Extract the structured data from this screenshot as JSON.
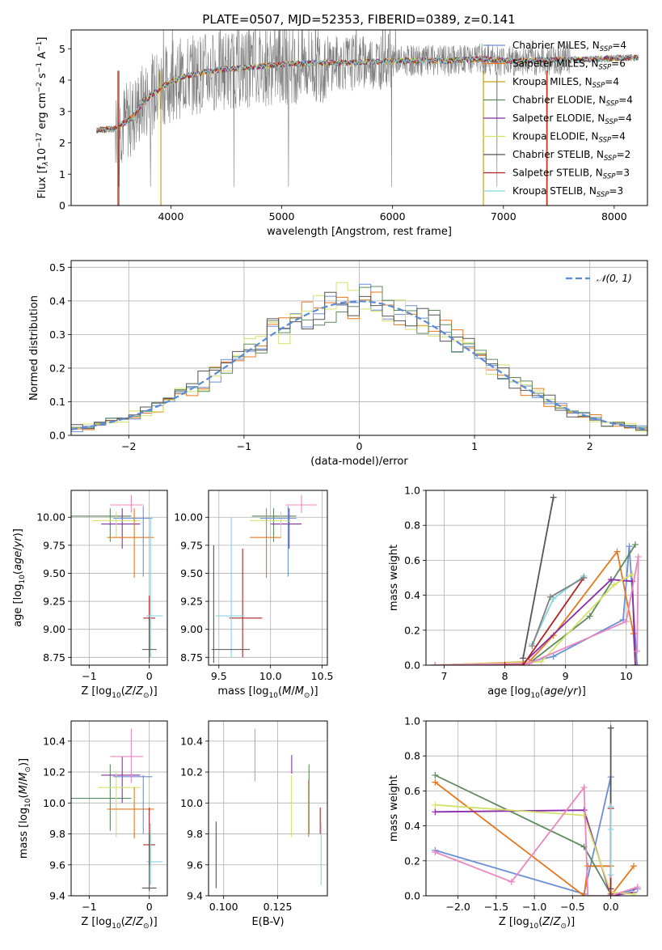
{
  "figure_title": "PLATE=0507, MJD=52353, FIBERID=0389, z=0.141",
  "chart_data": [
    {
      "id": "spectrum",
      "type": "line",
      "xlabel": "wavelength [Angstrom, rest frame]",
      "ylabel_parts": [
        "Flux [f",
        "λ",
        "10",
        "−17",
        " erg cm",
        "−2",
        " s",
        "−1",
        " A",
        "−1",
        "]"
      ],
      "xlim": [
        3100,
        8300
      ],
      "ylim": [
        0,
        5.6
      ],
      "xticks": [
        4000,
        5000,
        6000,
        7000,
        8000
      ],
      "yticks": [
        0,
        1,
        2,
        3,
        4,
        5
      ],
      "grid": false,
      "legend_placement": "upper right",
      "data_color": "#808080",
      "continuum": {
        "x": [
          3330,
          3500,
          3650,
          3750,
          3850,
          3950,
          4100,
          4300,
          4500,
          4700,
          5000,
          5300,
          5600,
          5900,
          6200,
          6500,
          6800,
          7100,
          7400,
          7700,
          8000,
          8200
        ],
        "y": [
          2.4,
          2.45,
          2.8,
          3.3,
          3.6,
          3.85,
          4.1,
          4.25,
          4.35,
          4.4,
          4.5,
          4.55,
          4.55,
          4.6,
          4.62,
          4.62,
          4.68,
          4.6,
          4.65,
          4.65,
          4.7,
          4.72
        ]
      },
      "series": [
        {
          "name_parts": [
            "Chabrier MILES, N",
            "SSP",
            "=4"
          ],
          "color": "#6a8fd6"
        },
        {
          "name_parts": [
            "Salpeter MILES, N",
            "SSP",
            "=6"
          ],
          "color": "#e8781e"
        },
        {
          "name_parts": [
            "Kroupa MILES, N",
            "SSP",
            "=4"
          ],
          "color": "#c9a018"
        },
        {
          "name_parts": [
            "Chabrier ELODIE, N",
            "SSP",
            "=4"
          ],
          "color": "#5e8a5e"
        },
        {
          "name_parts": [
            "Salpeter ELODIE, N",
            "SSP",
            "=4"
          ],
          "color": "#8a2da8"
        },
        {
          "name_parts": [
            "Kroupa ELODIE, N",
            "SSP",
            "=4"
          ],
          "color": "#d4e06a"
        },
        {
          "name_parts": [
            "Chabrier STELIB, N",
            "SSP",
            "=2"
          ],
          "color": "#555555"
        },
        {
          "name_parts": [
            "Salpeter STELIB, N",
            "SSP",
            "=3"
          ],
          "color": "#b22222"
        },
        {
          "name_parts": [
            "Kroupa STELIB, N",
            "SSP",
            "=3"
          ],
          "color": "#8ad4e0"
        }
      ]
    },
    {
      "id": "residuals",
      "type": "line",
      "xlabel": "(data-model)/error",
      "ylabel": "Normed distribution",
      "xlim": [
        -2.5,
        2.5
      ],
      "ylim": [
        0,
        0.52
      ],
      "xticks": [
        -2,
        -1,
        0,
        1,
        2
      ],
      "xtick_labels": [
        "−2",
        "−1",
        "0",
        "1",
        "2"
      ],
      "yticks": [
        0.0,
        0.1,
        0.2,
        0.3,
        0.4,
        0.5
      ],
      "ytick_labels": [
        "0.0",
        "0.1",
        "0.2",
        "0.3",
        "0.4",
        "0.5"
      ],
      "grid": true,
      "legend": "𝒩(0, 1)",
      "legend_placement": "upper right",
      "gauss_color": "#5b8bd6",
      "series_colors": [
        "#6a8fd6",
        "#e8781e",
        "#d4e06a",
        "#5e8a5e",
        "#555555"
      ]
    },
    {
      "id": "age-vs-z",
      "type": "scatter",
      "xlabel": "Z [log10(Z/Z⊙)]",
      "ylabel": "age  [log10(age/yr)]",
      "xlim": [
        -1.3,
        0.3
      ],
      "ylim": [
        8.68,
        10.24
      ],
      "xticks": [
        -1,
        0
      ],
      "xtick_labels": [
        "−1",
        "0"
      ],
      "yticks": [
        8.75,
        9.0,
        9.25,
        9.5,
        9.75,
        10.0
      ],
      "ytick_labels": [
        "8.75",
        "9.00",
        "9.25",
        "9.50",
        "9.75",
        "10.00"
      ],
      "grid": true,
      "points": [
        {
          "x": -0.65,
          "y": 10.01,
          "xlo": -1.3,
          "xhi": -0.3,
          "ylo": 9.78,
          "yhi": 10.08,
          "color": "#5e8a5e"
        },
        {
          "x": -0.45,
          "y": 9.94,
          "xlo": -0.8,
          "xhi": -0.15,
          "ylo": 9.72,
          "yhi": 10.08,
          "color": "#8a2da8"
        },
        {
          "x": -0.55,
          "y": 9.97,
          "xlo": -0.95,
          "xhi": -0.15,
          "ylo": 9.82,
          "yhi": 10.05,
          "color": "#d4e06a"
        },
        {
          "x": -0.25,
          "y": 9.82,
          "xlo": -0.7,
          "xhi": 0.08,
          "ylo": 9.46,
          "yhi": 10.08,
          "color": "#e8781e"
        },
        {
          "x": -0.1,
          "y": 9.99,
          "xlo": -0.6,
          "xhi": 0.05,
          "ylo": 9.47,
          "yhi": 10.1,
          "color": "#6a8fd6"
        },
        {
          "x": -0.3,
          "y": 10.11,
          "xlo": -0.65,
          "xhi": -0.1,
          "ylo": 10.04,
          "yhi": 10.2,
          "color": "#e887c0"
        },
        {
          "x": 0.0,
          "y": 9.1,
          "xlo": -0.1,
          "xhi": 0.1,
          "ylo": 8.75,
          "yhi": 9.3,
          "color": "#b22222"
        },
        {
          "x": 0.02,
          "y": 9.12,
          "xlo": -0.05,
          "xhi": 0.22,
          "ylo": 8.75,
          "yhi": 10.0,
          "color": "#8ad4e0"
        },
        {
          "x": 0.0,
          "y": 8.82,
          "xlo": -0.12,
          "xhi": 0.12,
          "ylo": 8.7,
          "yhi": 9.1,
          "color": "#555555"
        }
      ]
    },
    {
      "id": "age-vs-mass",
      "type": "scatter",
      "xlabel": "mass [log10(M/M⊙)]",
      "ylabel": "",
      "xlim": [
        9.4,
        10.55
      ],
      "ylim": [
        8.68,
        10.24
      ],
      "xticks": [
        9.5,
        10.0,
        10.5
      ],
      "xtick_labels": [
        "9.5",
        "10.0",
        "10.5"
      ],
      "yticks": [
        8.75,
        9.0,
        9.25,
        9.5,
        9.75,
        10.0
      ],
      "ytick_labels": [
        "8.75",
        "9.00",
        "9.25",
        "9.50",
        "9.75",
        "10.00"
      ],
      "grid": true,
      "points": [
        {
          "x": 10.03,
          "y": 10.01,
          "xlo": 9.82,
          "xhi": 10.25,
          "ylo": 9.78,
          "yhi": 10.08,
          "color": "#5e8a5e"
        },
        {
          "x": 10.18,
          "y": 9.94,
          "xlo": 10.0,
          "xhi": 10.3,
          "ylo": 9.72,
          "yhi": 10.08,
          "color": "#8a2da8"
        },
        {
          "x": 10.1,
          "y": 9.97,
          "xlo": 9.8,
          "xhi": 10.2,
          "ylo": 9.82,
          "yhi": 10.05,
          "color": "#d4e06a"
        },
        {
          "x": 9.96,
          "y": 9.82,
          "xlo": 9.8,
          "xhi": 10.1,
          "ylo": 9.46,
          "yhi": 10.08,
          "color": "#e8781e"
        },
        {
          "x": 10.17,
          "y": 9.99,
          "xlo": 9.9,
          "xhi": 10.25,
          "ylo": 9.47,
          "yhi": 10.1,
          "color": "#6a8fd6"
        },
        {
          "x": 10.3,
          "y": 10.11,
          "xlo": 10.15,
          "xhi": 10.45,
          "ylo": 10.04,
          "yhi": 10.2,
          "color": "#e887c0"
        },
        {
          "x": 9.73,
          "y": 9.1,
          "xlo": 9.6,
          "xhi": 9.92,
          "ylo": 8.75,
          "yhi": 9.72,
          "color": "#b22222"
        },
        {
          "x": 9.62,
          "y": 9.12,
          "xlo": 9.47,
          "xhi": 9.75,
          "ylo": 8.75,
          "yhi": 10.0,
          "color": "#8ad4e0"
        },
        {
          "x": 9.45,
          "y": 8.82,
          "xlo": 9.43,
          "xhi": 9.8,
          "ylo": 8.7,
          "yhi": 9.75,
          "color": "#555555"
        }
      ]
    },
    {
      "id": "mw-vs-age",
      "type": "line",
      "xlabel": "age  [log10(age/yr)]",
      "ylabel": "mass weight",
      "xlim": [
        6.7,
        10.35
      ],
      "ylim": [
        0,
        1.0
      ],
      "xticks": [
        7,
        8,
        9,
        10
      ],
      "xtick_labels": [
        "7",
        "8",
        "9",
        "10"
      ],
      "yticks": [
        0.0,
        0.2,
        0.4,
        0.6,
        0.8,
        1.0
      ],
      "ytick_labels": [
        "0.0",
        "0.2",
        "0.4",
        "0.6",
        "0.8",
        "1.0"
      ],
      "grid": true,
      "series": [
        {
          "color": "#6a8fd6",
          "x": [
            6.85,
            8.3,
            8.8,
            9.95,
            10.05,
            10.18
          ],
          "y": [
            0.0,
            0.01,
            0.05,
            0.26,
            0.68,
            0.0
          ]
        },
        {
          "color": "#e8781e",
          "x": [
            6.85,
            8.4,
            8.8,
            9.85,
            10.12,
            10.15
          ],
          "y": [
            0.0,
            0.02,
            0.17,
            0.65,
            0.18,
            0.0
          ]
        },
        {
          "color": "#5e8a5e",
          "x": [
            6.85,
            8.4,
            9.4,
            10.15
          ],
          "y": [
            0.0,
            0.01,
            0.28,
            0.69
          ]
        },
        {
          "color": "#8a2da8",
          "x": [
            6.85,
            8.3,
            9.75,
            10.1,
            10.15
          ],
          "y": [
            0.0,
            0.01,
            0.49,
            0.48,
            0.0
          ]
        },
        {
          "color": "#d4e06a",
          "x": [
            6.85,
            8.6,
            9.8,
            10.1
          ],
          "y": [
            0.0,
            0.02,
            0.46,
            0.52
          ]
        },
        {
          "color": "#e887c0",
          "x": [
            6.85,
            8.4,
            10.0,
            10.2,
            10.18
          ],
          "y": [
            0.0,
            0.01,
            0.25,
            0.62,
            0.08
          ]
        },
        {
          "color": "#555555",
          "x": [
            8.3,
            8.8
          ],
          "y": [
            0.04,
            0.96
          ]
        },
        {
          "color": "#b22222",
          "x": [
            8.0,
            8.3,
            9.3
          ],
          "y": [
            0.0,
            0.0,
            0.5
          ]
        },
        {
          "color": "#8ad4e0",
          "x": [
            8.45,
            8.8,
            9.3
          ],
          "y": [
            0.12,
            0.38,
            0.51
          ]
        },
        {
          "color": "#808080",
          "x": [
            8.45,
            8.75,
            9.3
          ],
          "y": [
            0.11,
            0.39,
            0.5
          ]
        }
      ]
    },
    {
      "id": "mass-vs-z",
      "type": "scatter",
      "xlabel": "Z [log10(Z/Z⊙)]",
      "ylabel": "mass [log10(M/M⊙)]",
      "xlim": [
        -1.3,
        0.3
      ],
      "ylim": [
        9.4,
        10.53
      ],
      "xticks": [
        -1,
        0
      ],
      "xtick_labels": [
        "−1",
        "0"
      ],
      "yticks": [
        9.4,
        9.6,
        9.8,
        10.0,
        10.2,
        10.4
      ],
      "ytick_labels": [
        "9.4",
        "9.6",
        "9.8",
        "10.0",
        "10.2",
        "10.4"
      ],
      "grid": true,
      "points": [
        {
          "x": -0.65,
          "y": 10.03,
          "xlo": -1.3,
          "xhi": -0.3,
          "ylo": 9.82,
          "yhi": 10.25,
          "color": "#5e8a5e"
        },
        {
          "x": -0.45,
          "y": 10.18,
          "xlo": -0.8,
          "xhi": -0.15,
          "ylo": 10.0,
          "yhi": 10.3,
          "color": "#8a2da8"
        },
        {
          "x": -0.55,
          "y": 10.1,
          "xlo": -0.85,
          "xhi": -0.15,
          "ylo": 9.78,
          "yhi": 10.2,
          "color": "#d4e06a"
        },
        {
          "x": -0.25,
          "y": 9.96,
          "xlo": -0.7,
          "xhi": 0.08,
          "ylo": 9.77,
          "yhi": 10.1,
          "color": "#e8781e"
        },
        {
          "x": -0.1,
          "y": 10.17,
          "xlo": -0.6,
          "xhi": 0.05,
          "ylo": 9.8,
          "yhi": 10.18,
          "color": "#6a8fd6"
        },
        {
          "x": -0.3,
          "y": 10.3,
          "xlo": -0.65,
          "xhi": -0.1,
          "ylo": 10.13,
          "yhi": 10.48,
          "color": "#e887c0"
        },
        {
          "x": 0.0,
          "y": 9.73,
          "xlo": -0.1,
          "xhi": 0.1,
          "ylo": 9.6,
          "yhi": 9.97,
          "color": "#b22222"
        },
        {
          "x": 0.02,
          "y": 9.62,
          "xlo": -0.05,
          "xhi": 0.22,
          "ylo": 9.47,
          "yhi": 9.87,
          "color": "#8ad4e0"
        },
        {
          "x": 0.0,
          "y": 9.45,
          "xlo": -0.12,
          "xhi": 0.12,
          "ylo": 9.43,
          "yhi": 9.8,
          "color": "#555555"
        }
      ]
    },
    {
      "id": "mass-vs-ebv",
      "type": "scatter",
      "xlabel": "E(B-V)",
      "ylabel": "",
      "xlim": [
        0.093,
        0.148
      ],
      "ylim": [
        9.4,
        10.53
      ],
      "xticks": [
        0.1,
        0.125
      ],
      "xtick_labels": [
        "0.100",
        "0.125"
      ],
      "yticks": [
        9.4,
        9.6,
        9.8,
        10.0,
        10.2,
        10.4
      ],
      "ytick_labels": [
        "9.4",
        "9.6",
        "9.8",
        "10.0",
        "10.2",
        "10.4"
      ],
      "grid": true,
      "points": [
        {
          "x": 0.0965,
          "ylo": 9.45,
          "yhi": 9.88,
          "color": "#555555"
        },
        {
          "x": 0.1145,
          "ylo": 10.14,
          "yhi": 10.48,
          "color": "#e887c0"
        },
        {
          "x": 0.1315,
          "ylo": 10.19,
          "yhi": 10.31,
          "color": "#8a2da8"
        },
        {
          "x": 0.1313,
          "ylo": 9.78,
          "yhi": 10.18,
          "color": "#d4e06a"
        },
        {
          "x": 0.1395,
          "ylo": 9.8,
          "yhi": 10.25,
          "color": "#5e8a5e"
        },
        {
          "x": 0.1393,
          "ylo": 9.78,
          "yhi": 10.15,
          "color": "#e8781e"
        },
        {
          "x": 0.1447,
          "ylo": 9.8,
          "yhi": 9.97,
          "color": "#b22222"
        },
        {
          "x": 0.1451,
          "ylo": 9.47,
          "yhi": 9.87,
          "color": "#8ad4e0"
        }
      ]
    },
    {
      "id": "mw-vs-z",
      "type": "line",
      "xlabel": "Z [log10(Z/Z⊙)]",
      "ylabel": "mass weight",
      "xlim": [
        -2.42,
        0.48
      ],
      "ylim": [
        0,
        1.0
      ],
      "xticks": [
        -2.0,
        -1.5,
        -1.0,
        -0.5,
        0.0
      ],
      "xtick_labels": [
        "−2.0",
        "−1.5",
        "−1.0",
        "−0.5",
        "0.0"
      ],
      "yticks": [
        0.0,
        0.2,
        0.4,
        0.6,
        0.8,
        1.0
      ],
      "ytick_labels": [
        "0.0",
        "0.2",
        "0.4",
        "0.6",
        "0.8",
        "1.0"
      ],
      "grid": true,
      "series": [
        {
          "color": "#6a8fd6",
          "x": [
            -2.3,
            -0.35,
            0.0,
            0.0,
            0.35
          ],
          "y": [
            0.26,
            0.01,
            0.68,
            0.0,
            0.04
          ]
        },
        {
          "color": "#e8781e",
          "x": [
            -2.3,
            -0.35,
            -0.3,
            0.0,
            0.0,
            0.3
          ],
          "y": [
            0.65,
            0.0,
            0.17,
            0.17,
            0.0,
            0.17
          ]
        },
        {
          "color": "#5e8a5e",
          "x": [
            -2.3,
            -0.35,
            0.0,
            0.0
          ],
          "y": [
            0.69,
            0.28,
            0.01,
            0.0
          ]
        },
        {
          "color": "#8a2da8",
          "x": [
            -2.3,
            -0.35,
            0.0,
            0.3
          ],
          "y": [
            0.48,
            0.49,
            0.0,
            0.02
          ]
        },
        {
          "color": "#d4e06a",
          "x": [
            -2.3,
            -0.35,
            0.0,
            0.3
          ],
          "y": [
            0.52,
            0.46,
            0.02,
            0.01
          ]
        },
        {
          "color": "#e887c0",
          "x": [
            -2.3,
            -1.3,
            -0.35,
            -0.3,
            0.0,
            0.35
          ],
          "y": [
            0.25,
            0.08,
            0.62,
            0.0,
            0.0,
            0.05
          ]
        },
        {
          "color": "#555555",
          "x": [
            0.0,
            0.0
          ],
          "y": [
            0.04,
            0.96
          ]
        },
        {
          "color": "#b22222",
          "x": [
            0.0,
            0.0
          ],
          "y": [
            0.0,
            0.5
          ]
        },
        {
          "color": "#8ad4e0",
          "x": [
            0.0,
            0.0,
            0.0
          ],
          "y": [
            0.12,
            0.38,
            0.51
          ]
        }
      ]
    }
  ]
}
